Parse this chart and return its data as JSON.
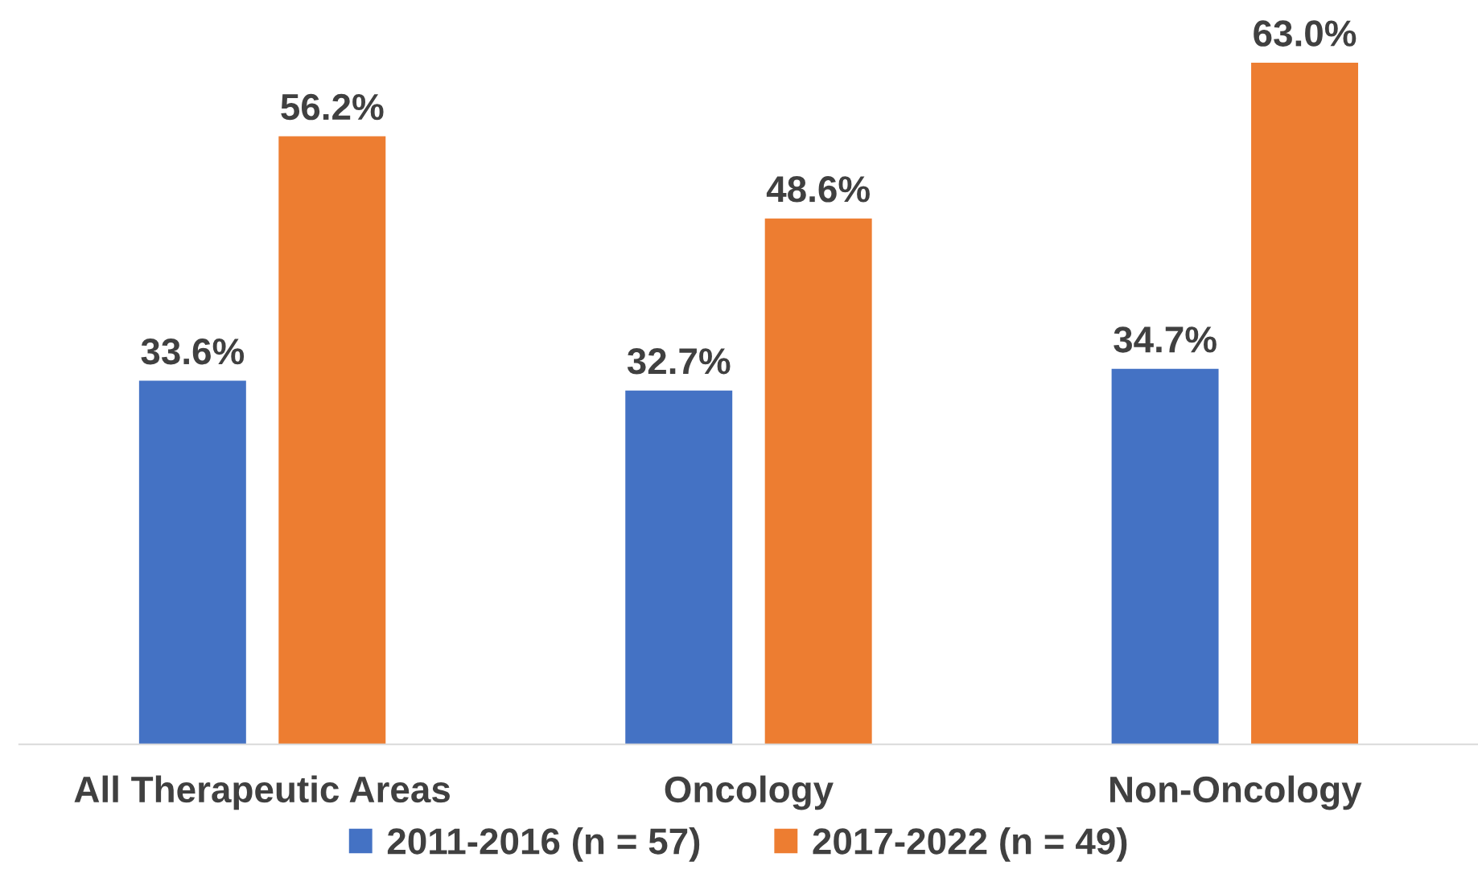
{
  "chart_data": {
    "type": "bar",
    "categories": [
      "All Therapeutic Areas",
      "Oncology",
      "Non-Oncology"
    ],
    "series": [
      {
        "name": "2011-2016 (n = 57)",
        "color": "#4472c4",
        "values": [
          33.6,
          32.7,
          34.7
        ],
        "value_labels": [
          "33.6%",
          "32.7%",
          "34.7%"
        ]
      },
      {
        "name": "2017-2022 (n = 49)",
        "color": "#ed7d31",
        "values": [
          56.2,
          48.6,
          63.0
        ],
        "value_labels": [
          "56.2%",
          "48.6%",
          "63.0%"
        ]
      }
    ],
    "legend": "bottom",
    "grid": false
  }
}
